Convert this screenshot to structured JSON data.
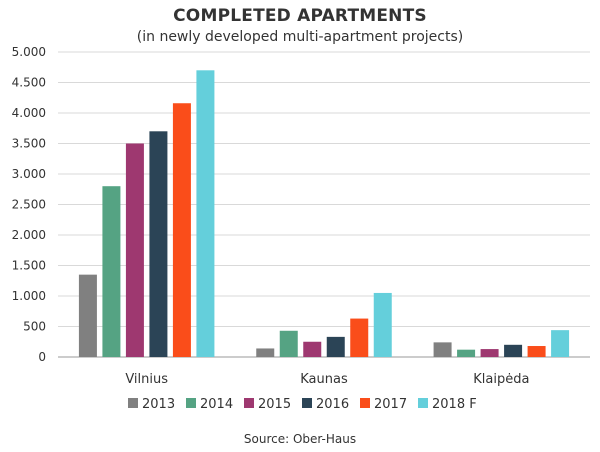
{
  "chart_data": {
    "type": "bar",
    "title": "COMPLETED APARTMENTS",
    "subtitle": "(in newly developed multi-apartment projects)",
    "source": "Source: Ober-Haus",
    "categories": [
      "Vilnius",
      "Kaunas",
      "Klaipėda"
    ],
    "series": [
      {
        "name": "2013",
        "color": "#808080",
        "values": [
          1350,
          140,
          240
        ]
      },
      {
        "name": "2014",
        "color": "#55a383",
        "values": [
          2800,
          430,
          120
        ]
      },
      {
        "name": "2015",
        "color": "#9e3870",
        "values": [
          3500,
          250,
          130
        ]
      },
      {
        "name": "2016",
        "color": "#2b4456",
        "values": [
          3700,
          330,
          200
        ]
      },
      {
        "name": "2017",
        "color": "#fa4d1a",
        "values": [
          4160,
          630,
          180
        ]
      },
      {
        "name": "2018 F",
        "color": "#64cfdb",
        "values": [
          4700,
          1050,
          440
        ]
      }
    ],
    "ylim": [
      0,
      5000
    ],
    "yticks": [
      0,
      500,
      1000,
      1500,
      2000,
      2500,
      3000,
      3500,
      4000,
      4500,
      5000
    ],
    "ytick_labels": [
      "0",
      "500",
      "1.000",
      "1.500",
      "2.000",
      "2.500",
      "3.000",
      "3.500",
      "4.000",
      "4.500",
      "5.000"
    ],
    "grid": true,
    "legend_position": "bottom"
  }
}
